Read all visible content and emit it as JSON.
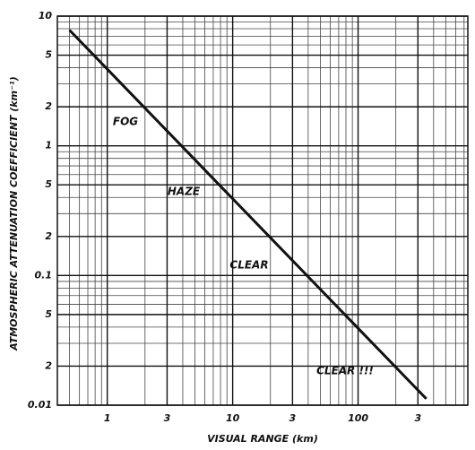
{
  "chart_data": {
    "type": "line",
    "x_label": "VISUAL RANGE (km)",
    "y_label": "ATMOSPHERIC ATTENUATION COEFFICIENT (km⁻¹)",
    "annotations": [
      "FOG",
      "HAZE",
      "CLEAR",
      "CLEAR !!!"
    ],
    "x_log": true,
    "y_log": true,
    "grid": true,
    "xlim": [
      0.4,
      750
    ],
    "ylim": [
      0.01,
      10
    ],
    "xticks": [
      1,
      3,
      10,
      {
        "value": 30,
        "label": "3"
      },
      100,
      {
        "value": 300,
        "label": "3"
      }
    ],
    "yticks": [
      10,
      5,
      2,
      1,
      {
        "value": 0.5,
        "label": "5"
      },
      {
        "value": 0.2,
        "label": "2"
      },
      0.1,
      {
        "value": 0.05,
        "label": "5"
      },
      {
        "value": 0.02,
        "label": "2"
      },
      0.01
    ],
    "xminorticks": [
      0.4,
      0.5,
      0.6,
      0.7,
      0.8,
      0.9,
      2,
      4,
      5,
      6,
      7,
      8,
      9,
      20,
      40,
      50,
      60,
      70,
      80,
      90,
      200,
      400,
      500,
      600,
      700
    ],
    "yminorticks": [
      9,
      8,
      7,
      6,
      4,
      3,
      0.9,
      0.8,
      0.7,
      0.6,
      0.4,
      0.3,
      0.09,
      0.08,
      0.07,
      0.06,
      0.04,
      0.03
    ],
    "x": [
      0.5,
      350
    ],
    "values": [
      7.8,
      0.0112
    ],
    "color": "#111111"
  }
}
